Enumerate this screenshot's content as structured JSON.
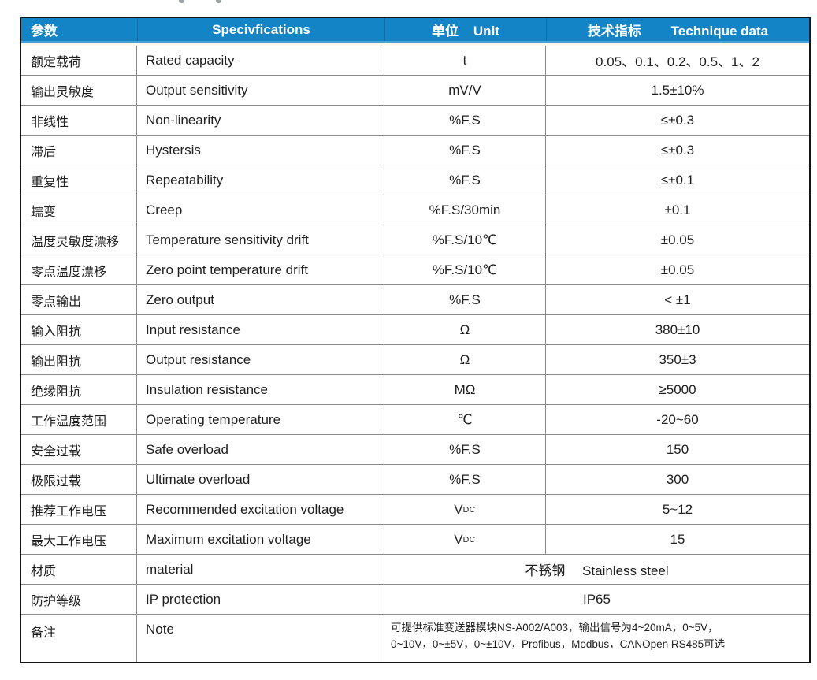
{
  "artifacts": {
    "cropped_title_remnants": 2
  },
  "table": {
    "headers": [
      {
        "label": "参数"
      },
      {
        "label": "Specivfications"
      },
      {
        "label": "单位    Unit"
      },
      {
        "label": "技术指标        Technique data"
      }
    ],
    "rows": [
      {
        "param_zh": "额定载荷",
        "param_en": "Rated capacity",
        "unit": "t",
        "value": "0.05、0.1、0.2、0.5、1、2"
      },
      {
        "param_zh": "输出灵敏度",
        "param_en": "Output sensitivity",
        "unit": "mV/V",
        "value": "1.5±10%"
      },
      {
        "param_zh": "非线性",
        "param_en": "Non-linearity",
        "unit": "%F.S",
        "value": "≤±0.3"
      },
      {
        "param_zh": "滞后",
        "param_en": "Hystersis",
        "unit": "%F.S",
        "value": "≤±0.3"
      },
      {
        "param_zh": "重复性",
        "param_en": "Repeatability",
        "unit": "%F.S",
        "value": "≤±0.1"
      },
      {
        "param_zh": "蠕变",
        "param_en": "Creep",
        "unit": "%F.S/30min",
        "value": "±0.1"
      },
      {
        "param_zh": "温度灵敏度漂移",
        "param_en": "Temperature sensitivity drift",
        "unit": "%F.S/10℃",
        "value": "±0.05"
      },
      {
        "param_zh": "零点温度漂移",
        "param_en": "Zero point temperature drift",
        "unit": "%F.S/10℃",
        "value": "±0.05"
      },
      {
        "param_zh": "零点输出",
        "param_en": "Zero output",
        "unit": "%F.S",
        "value": "< ±1"
      },
      {
        "param_zh": "输入阻抗",
        "param_en": "Input resistance",
        "unit": "Ω",
        "value": "380±10"
      },
      {
        "param_zh": "输出阻抗",
        "param_en": "Output resistance",
        "unit": "Ω",
        "value": "350±3"
      },
      {
        "param_zh": "绝缘阻抗",
        "param_en": "Insulation resistance",
        "unit": "MΩ",
        "value": "≥5000"
      },
      {
        "param_zh": "工作温度范围",
        "param_en": "Operating temperature",
        "unit": "℃",
        "value": "-20~60"
      },
      {
        "param_zh": "安全过载",
        "param_en": "Safe overload",
        "unit": "%F.S",
        "value": "150"
      },
      {
        "param_zh": "极限过载",
        "param_en": "Ultimate overload",
        "unit": "%F.S",
        "value": "300"
      },
      {
        "param_zh": "推荐工作电压",
        "param_en": "Recommended excitation voltage",
        "unit": "V",
        "unit_sub": "DC",
        "value": "5~12"
      },
      {
        "param_zh": "最大工作电压",
        "param_en": "Maximum excitation voltage",
        "unit": "V",
        "unit_sub": "DC",
        "value": "15"
      },
      {
        "param_zh": "材质",
        "param_en": "material",
        "merged_value": "不锈钢　 Stainless steel"
      },
      {
        "param_zh": "防护等级",
        "param_en": "IP protection",
        "merged_value": "IP65"
      },
      {
        "param_zh": "备注",
        "param_en": "Note",
        "note": true,
        "merged_value_lines": [
          "可提供标准变送器模块NS-A002/A003，输出信号为4~20mA，0~5V，",
          "0~10V，0~±5V，0~±10V，Profibus，Modbus，CANOpen RS485可选"
        ]
      }
    ],
    "colors": {
      "header_bg": "#1385c7",
      "header_text": "#ffffff",
      "accent_strip": "#4ba2d7",
      "cream_strip": "#fdf8e9",
      "grid_line": "#8a8a8a",
      "outer_border": "#141414",
      "body_text": "#1f1f1f"
    }
  }
}
